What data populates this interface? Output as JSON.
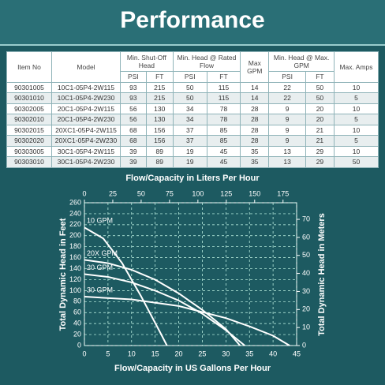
{
  "header": {
    "title": "Performance"
  },
  "table": {
    "columns": [
      "Item No",
      "Model",
      "Min. Shut-Off Head",
      "Min. Head @ Rated Flow",
      "Max GPM",
      "Min. Head @ Max. GPM",
      "Max. Amps"
    ],
    "subcolumns": [
      "PSI",
      "FT",
      "PSI",
      "FT",
      "PSI",
      "FT"
    ],
    "rows": [
      [
        "90301005",
        "10C1-05P4-2W115",
        "93",
        "215",
        "50",
        "115",
        "14",
        "22",
        "50",
        "10"
      ],
      [
        "90301010",
        "10C1-05P4-2W230",
        "93",
        "215",
        "50",
        "115",
        "14",
        "22",
        "50",
        "5"
      ],
      [
        "90302005",
        "20C1-05P4-2W115",
        "56",
        "130",
        "34",
        "78",
        "28",
        "9",
        "20",
        "10"
      ],
      [
        "90302010",
        "20C1-05P4-2W230",
        "56",
        "130",
        "34",
        "78",
        "28",
        "9",
        "20",
        "5"
      ],
      [
        "90302015",
        "20XC1-05P4-2W115",
        "68",
        "156",
        "37",
        "85",
        "28",
        "9",
        "21",
        "10"
      ],
      [
        "90302020",
        "20XC1-05P4-2W230",
        "68",
        "156",
        "37",
        "85",
        "28",
        "9",
        "21",
        "5"
      ],
      [
        "90303005",
        "30C1-05P4-2W115",
        "39",
        "89",
        "19",
        "45",
        "35",
        "13",
        "29",
        "10"
      ],
      [
        "90303010",
        "30C1-05P4-2W230",
        "39",
        "89",
        "19",
        "45",
        "35",
        "13",
        "29",
        "50"
      ]
    ]
  },
  "chart_data": {
    "type": "line",
    "x2_label": "Flow/Capacity in Liters Per Hour",
    "x_label": "Flow/Capacity in US Gallons Per Hour",
    "y_label": "Total Dynamic Head in Feet",
    "y2_label": "Total Dynamic Head in Meters",
    "xlim": [
      0,
      45
    ],
    "xticks": [
      0,
      5,
      10,
      15,
      20,
      25,
      30,
      35,
      40,
      45
    ],
    "x2lim": [
      0,
      187
    ],
    "x2ticks": [
      0,
      25,
      50,
      75,
      100,
      125,
      150,
      175
    ],
    "ylim": [
      0,
      260
    ],
    "yticks": [
      0,
      20,
      40,
      60,
      80,
      100,
      120,
      140,
      160,
      180,
      200,
      220,
      240,
      260
    ],
    "y2lim": [
      0,
      79.2
    ],
    "y2ticks": [
      0,
      10,
      20,
      30,
      40,
      50,
      60,
      70
    ],
    "grid": true,
    "series": [
      {
        "name": "10 GPM",
        "color": "#ffffff",
        "x": [
          0,
          4,
          8,
          12,
          16,
          17.5
        ],
        "values": [
          215,
          195,
          150,
          90,
          25,
          0
        ]
      },
      {
        "name": "20X GPM",
        "color": "#ffffff",
        "x": [
          0,
          5,
          10,
          15,
          20,
          25,
          30,
          33
        ],
        "values": [
          156,
          150,
          138,
          120,
          95,
          65,
          30,
          0
        ]
      },
      {
        "name": "20 GPM",
        "color": "#ffffff",
        "x": [
          0,
          5,
          10,
          15,
          20,
          25,
          30,
          34
        ],
        "values": [
          130,
          125,
          115,
          100,
          82,
          58,
          28,
          0
        ]
      },
      {
        "name": "30 GPM",
        "color": "#ffffff",
        "x": [
          0,
          10,
          20,
          30,
          35,
          40,
          43.5
        ],
        "values": [
          89,
          84,
          72,
          50,
          35,
          18,
          0
        ]
      }
    ]
  }
}
